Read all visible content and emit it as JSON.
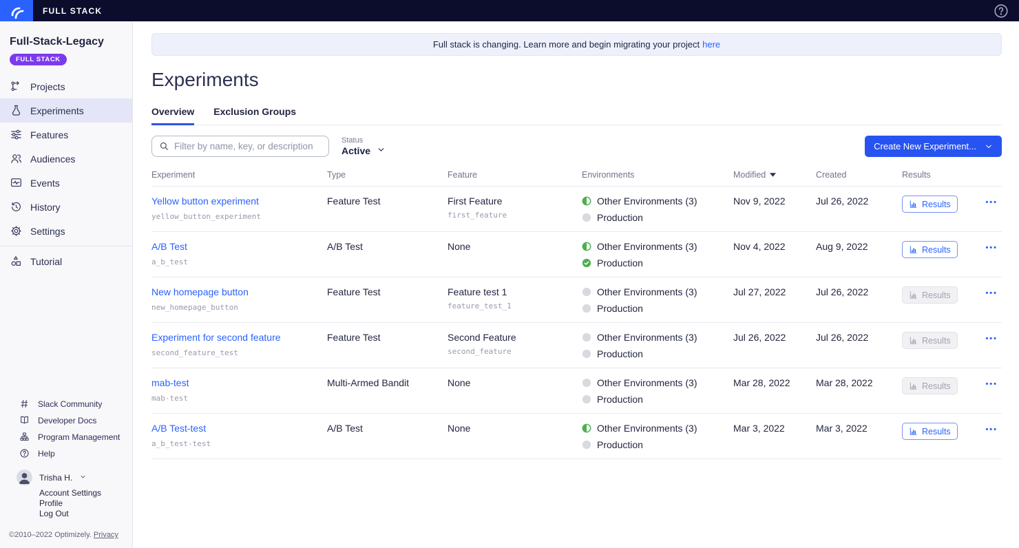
{
  "topbar": {
    "brand": "FULL STACK"
  },
  "sidebar": {
    "project_name": "Full-Stack-Legacy",
    "project_badge": "FULL STACK",
    "nav": [
      {
        "label": "Projects",
        "icon": "projects-icon",
        "active": false
      },
      {
        "label": "Experiments",
        "icon": "experiments-icon",
        "active": true
      },
      {
        "label": "Features",
        "icon": "features-icon",
        "active": false
      },
      {
        "label": "Audiences",
        "icon": "audiences-icon",
        "active": false
      },
      {
        "label": "Events",
        "icon": "events-icon",
        "active": false
      },
      {
        "label": "History",
        "icon": "history-icon",
        "active": false
      },
      {
        "label": "Settings",
        "icon": "settings-icon",
        "active": false,
        "divider_after": true
      },
      {
        "label": "Tutorial",
        "icon": "tutorial-icon",
        "active": false
      }
    ],
    "footer_links": [
      {
        "label": "Slack Community",
        "icon": "hash-icon"
      },
      {
        "label": "Developer Docs",
        "icon": "book-icon"
      },
      {
        "label": "Program Management",
        "icon": "org-chart-icon"
      },
      {
        "label": "Help",
        "icon": "help-icon"
      }
    ],
    "user": {
      "name": "Trisha H.",
      "links": [
        "Account Settings",
        "Profile",
        "Log Out"
      ]
    },
    "copyright": "©2010–2022 Optimizely.",
    "privacy_label": "Privacy"
  },
  "banner": {
    "text": "Full stack is changing. Learn more and begin migrating your project",
    "link_label": "here"
  },
  "page": {
    "title": "Experiments"
  },
  "tabs": [
    {
      "label": "Overview",
      "active": true
    },
    {
      "label": "Exclusion Groups",
      "active": false
    }
  ],
  "filters": {
    "search_placeholder": "Filter by name, key, or description",
    "status_label": "Status",
    "status_value": "Active",
    "create_button": "Create New Experiment..."
  },
  "table": {
    "headers": [
      "Experiment",
      "Type",
      "Feature",
      "Environments",
      "Modified",
      "Created",
      "Results"
    ],
    "sorted_by": "Modified",
    "results_button_label": "Results",
    "rows": [
      {
        "name": "Yellow button experiment",
        "key": "yellow_button_experiment",
        "type": "Feature Test",
        "feature": "First Feature",
        "feature_key": "first_feature",
        "environments": [
          {
            "status": "partial",
            "label": "Other Environments (3)"
          },
          {
            "status": "off",
            "label": "Production"
          }
        ],
        "modified": "Nov 9, 2022",
        "created": "Jul 26, 2022",
        "results_enabled": true
      },
      {
        "name": "A/B Test",
        "key": "a_b_test",
        "type": "A/B Test",
        "feature": "None",
        "feature_key": "",
        "environments": [
          {
            "status": "partial",
            "label": "Other Environments (3)"
          },
          {
            "status": "running",
            "label": "Production"
          }
        ],
        "modified": "Nov 4, 2022",
        "created": "Aug 9, 2022",
        "results_enabled": true
      },
      {
        "name": "New homepage button",
        "key": "new_homepage_button",
        "type": "Feature Test",
        "feature": "Feature test 1",
        "feature_key": "feature_test_1",
        "environments": [
          {
            "status": "off",
            "label": "Other Environments (3)"
          },
          {
            "status": "off",
            "label": "Production"
          }
        ],
        "modified": "Jul 27, 2022",
        "created": "Jul 26, 2022",
        "results_enabled": false
      },
      {
        "name": "Experiment for second feature",
        "key": "second_feature_test",
        "type": "Feature Test",
        "feature": "Second Feature",
        "feature_key": "second_feature",
        "environments": [
          {
            "status": "off",
            "label": "Other Environments (3)"
          },
          {
            "status": "off",
            "label": "Production"
          }
        ],
        "modified": "Jul 26, 2022",
        "created": "Jul 26, 2022",
        "results_enabled": false
      },
      {
        "name": "mab-test",
        "key": "mab-test",
        "type": "Multi-Armed Bandit",
        "feature": "None",
        "feature_key": "",
        "environments": [
          {
            "status": "off",
            "label": "Other Environments (3)"
          },
          {
            "status": "off",
            "label": "Production"
          }
        ],
        "modified": "Mar 28, 2022",
        "created": "Mar 28, 2022",
        "results_enabled": false
      },
      {
        "name": "A/B Test-test",
        "key": "a_b_test-test",
        "type": "A/B Test",
        "feature": "None",
        "feature_key": "",
        "environments": [
          {
            "status": "partial",
            "label": "Other Environments (3)"
          },
          {
            "status": "off",
            "label": "Production"
          }
        ],
        "modified": "Mar 3, 2022",
        "created": "Mar 3, 2022",
        "results_enabled": true
      }
    ]
  },
  "colors": {
    "accent_blue": "#2962FF",
    "topbar_navy": "#0C0D2D",
    "badge_purple": "#7C3AED",
    "env_green": "#4CAF50",
    "env_gray": "#D9DAE0"
  }
}
